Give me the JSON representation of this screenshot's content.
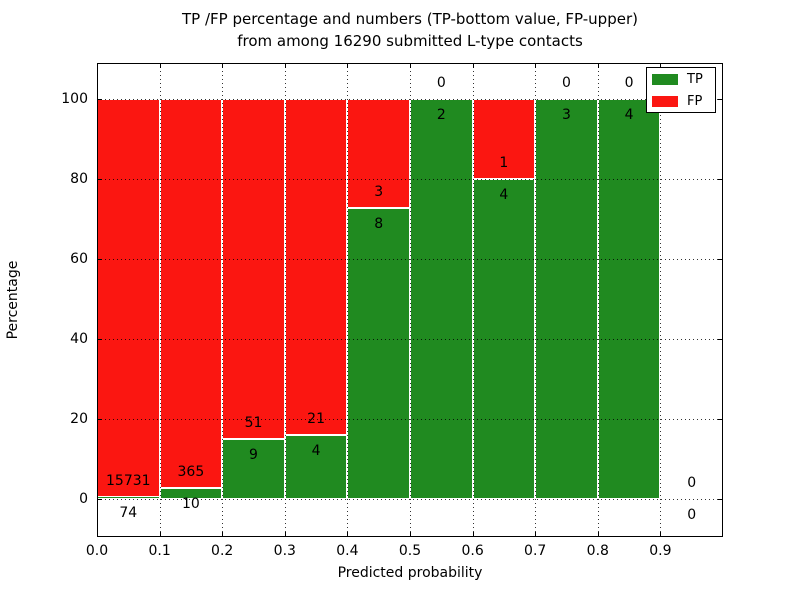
{
  "figure": {
    "title_line1": "TP /FP percentage and numbers (TP-bottom value, FP-upper)",
    "title_line2": "from among 16290 submitted L-type contacts"
  },
  "chart_data": {
    "type": "bar",
    "stacked": true,
    "title": "TP /FP percentage and numbers (TP-bottom value, FP-upper) from among 16290 submitted L-type contacts",
    "xlabel": "Predicted probability",
    "ylabel": "Percentage",
    "total_submitted_contacts": 16290,
    "xlim": [
      0.0,
      1.0
    ],
    "ylim": [
      -10,
      110
    ],
    "grid": "dotted both axes",
    "x_tick_labels": [
      "0.0",
      "0.1",
      "0.2",
      "0.3",
      "0.4",
      "0.5",
      "0.6",
      "0.7",
      "0.8",
      "0.9"
    ],
    "y_ticks": [
      0,
      20,
      40,
      60,
      80,
      100
    ],
    "legend": {
      "position": "upper right",
      "entries": [
        {
          "label": "TP",
          "color": "#208a20"
        },
        {
          "label": "FP",
          "color": "#fb1611"
        }
      ]
    },
    "bins": [
      {
        "x_start": 0.0,
        "x_end": 0.1,
        "tp": 74,
        "fp": 15731
      },
      {
        "x_start": 0.1,
        "x_end": 0.2,
        "tp": 10,
        "fp": 365
      },
      {
        "x_start": 0.2,
        "x_end": 0.3,
        "tp": 9,
        "fp": 51
      },
      {
        "x_start": 0.3,
        "x_end": 0.4,
        "tp": 4,
        "fp": 21
      },
      {
        "x_start": 0.4,
        "x_end": 0.5,
        "tp": 8,
        "fp": 3
      },
      {
        "x_start": 0.5,
        "x_end": 0.6,
        "tp": 2,
        "fp": 0
      },
      {
        "x_start": 0.6,
        "x_end": 0.7,
        "tp": 4,
        "fp": 1
      },
      {
        "x_start": 0.7,
        "x_end": 0.8,
        "tp": 3,
        "fp": 0
      },
      {
        "x_start": 0.8,
        "x_end": 0.9,
        "tp": 4,
        "fp": 0
      },
      {
        "x_start": 0.9,
        "x_end": 1.0,
        "tp": 0,
        "fp": 0
      }
    ],
    "colors": {
      "tp": "#208a20",
      "fp": "#fb1611",
      "bar_edge": "#ffffff",
      "grid": "#000000",
      "background": "#ffffff",
      "text": "#000000"
    }
  }
}
